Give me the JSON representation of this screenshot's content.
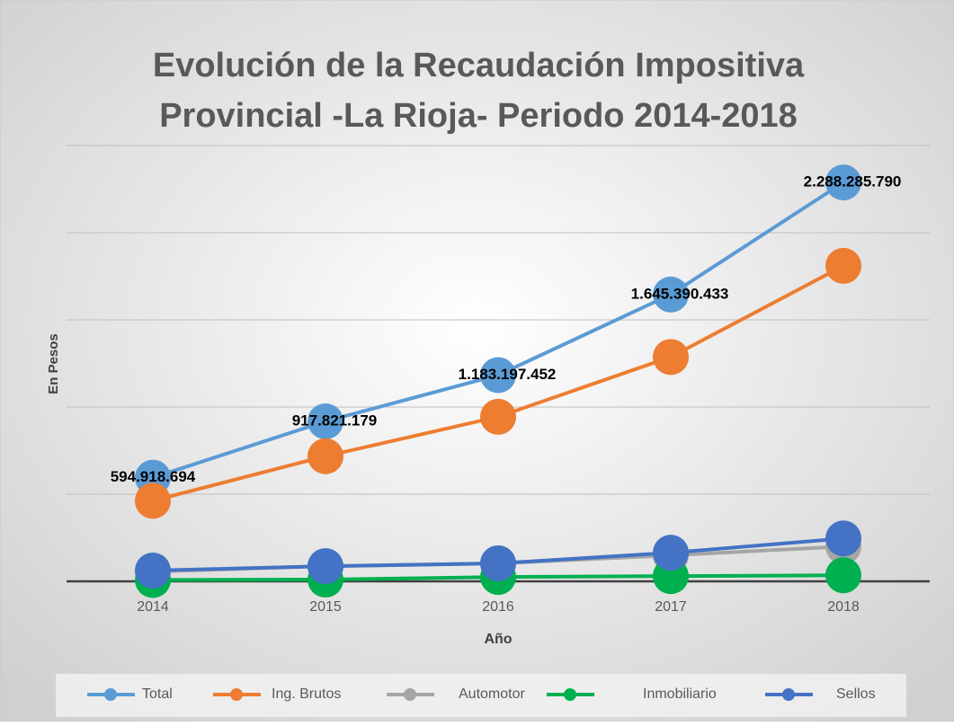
{
  "chart_data": {
    "type": "line",
    "title": [
      "Evolución de la Recaudación Impositiva",
      "Provincial -La Rioja- Periodo 2014-2018"
    ],
    "x_label": "Año",
    "y_label": "En Pesos",
    "categories": [
      "2014",
      "2015",
      "2016",
      "2017",
      "2018"
    ],
    "series": [
      {
        "name": "Total",
        "color": "#5b9bd5",
        "values": [
          594918694,
          917821179,
          1183197452,
          1645390433,
          2288285790
        ],
        "value_labels": [
          "594.918.694",
          "917.821.179",
          "1.183.197.452",
          "1.645.390.433",
          "2.288.285.790"
        ]
      },
      {
        "name": "Ing. Brutos",
        "color": "#ed7d31",
        "values": [
          462000000,
          718000000,
          944000000,
          1287000000,
          1810000000
        ]
      },
      {
        "name": "Automotor",
        "color": "#a5a5a5",
        "values": [
          56000000,
          87000000,
          103000000,
          149000000,
          200000000
        ]
      },
      {
        "name": "Inmobiliario",
        "color": "#00b050",
        "values": [
          8000000,
          10000000,
          25000000,
          30000000,
          35000000
        ]
      },
      {
        "name": "Sellos",
        "color": "#4472c4",
        "values": [
          62000000,
          87000000,
          103000000,
          164000000,
          246000000
        ]
      }
    ],
    "ylim": [
      0,
      2500000000
    ],
    "yticks": [
      0,
      500000000,
      1000000000,
      1500000000,
      2000000000,
      2500000000
    ],
    "grid": true,
    "legend": "bottom"
  }
}
